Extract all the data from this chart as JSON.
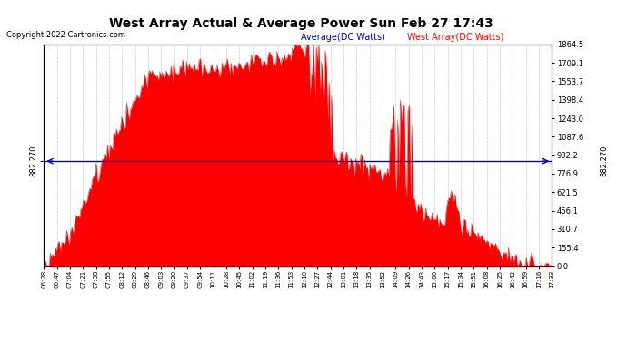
{
  "title": "West Array Actual & Average Power Sun Feb 27 17:43",
  "copyright": "Copyright 2022 Cartronics.com",
  "legend_average": "Average(DC Watts)",
  "legend_west": "West Array(DC Watts)",
  "average_value": 882.27,
  "y_right_labels": [
    "1864.5",
    "1709.1",
    "1553.7",
    "1398.4",
    "1243.0",
    "1087.6",
    "932.2",
    "776.9",
    "621.5",
    "466.1",
    "310.7",
    "155.4",
    "0.0"
  ],
  "y_right_values": [
    1864.5,
    1709.1,
    1553.7,
    1398.4,
    1243.0,
    1087.6,
    932.2,
    776.9,
    621.5,
    466.1,
    310.7,
    155.4,
    0.0
  ],
  "y_left_label": "882.270",
  "y_max": 1864.5,
  "y_min": 0.0,
  "background_color": "#ffffff",
  "fill_color": "#ff0000",
  "average_line_color": "#0000cc",
  "grid_color": "#bbbbbb",
  "title_color": "#000000",
  "copyright_color": "#000000",
  "legend_average_color": "#0000cc",
  "legend_west_color": "#ff0000",
  "x_labels": [
    "06:28",
    "06:47",
    "07:04",
    "07:21",
    "07:38",
    "07:55",
    "08:12",
    "08:29",
    "08:46",
    "09:03",
    "09:20",
    "09:37",
    "09:54",
    "10:11",
    "10:28",
    "10:45",
    "11:02",
    "11:19",
    "11:36",
    "11:53",
    "12:10",
    "12:27",
    "12:44",
    "13:01",
    "13:18",
    "13:35",
    "13:52",
    "14:09",
    "14:26",
    "14:43",
    "15:00",
    "15:17",
    "15:34",
    "15:51",
    "16:08",
    "16:25",
    "16:42",
    "16:59",
    "17:16",
    "17:33"
  ],
  "figsize": [
    6.9,
    3.75
  ],
  "dpi": 100
}
